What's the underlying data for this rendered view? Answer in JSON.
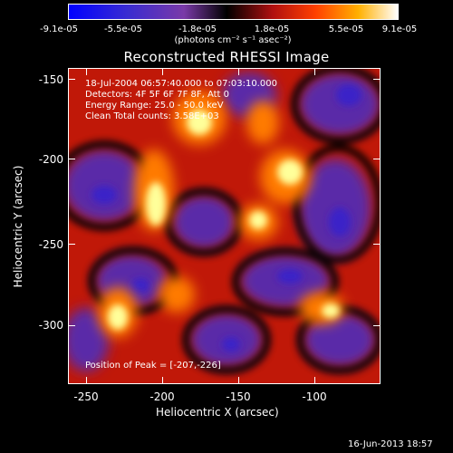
{
  "colorbar": {
    "ticks": [
      "-9.1e-05",
      "-5.5e-05",
      "-1.8e-05",
      "1.8e-05",
      "5.5e-05",
      "9.1e-05"
    ],
    "units": "(photons cm⁻² s⁻¹ asec⁻²)"
  },
  "title": "Reconstructed RHESSI Image",
  "info": {
    "line1": "18-Jul-2004 06:57:40.000 to 07:03:10.000",
    "line2": "Detectors: 4F 5F 6F 7F 8F, Att 0",
    "line3": "Energy Range: 25.0 - 50.0 keV",
    "line4": "Clean    Total counts: 3.58E+03"
  },
  "peak_label": "Position of Peak = [-207,-226]",
  "axes": {
    "y_ticks": [
      "-150",
      "-200",
      "-250",
      "-300"
    ],
    "x_ticks": [
      "-250",
      "-200",
      "-150",
      "-100"
    ],
    "xlabel": "Heliocentric X (arcsec)",
    "ylabel": "Heliocentric Y (arcsec)"
  },
  "timestamp": "16-Jun-2013 18:57",
  "colors": {
    "background": "#000000",
    "low": "#6a2fb5",
    "high": "#ffff9a"
  }
}
